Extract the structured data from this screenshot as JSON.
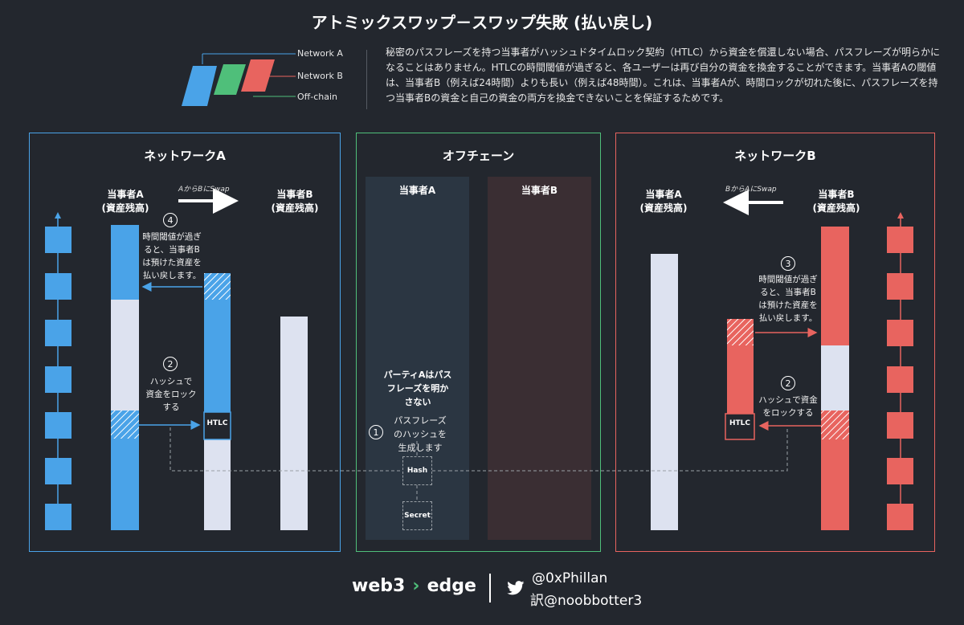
{
  "title": "アトミックスワップ－スワップ失敗 (払い戻し)",
  "legend": {
    "network_a": "Network A",
    "network_b": "Network B",
    "off_chain": "Off-chain"
  },
  "description": "秘密のパスフレーズを持つ当事者がハッシュドタイムロック契約（HTLC）から資金を償還しない場合、パスフレーズが明らかになることはありません。HTLCの時間閾値が過ぎると、各ユーザーは再び自分の資金を換金することができます。当事者Aの閾値は、当事者B（例えば24時間）よりも長い（例えば48時間）。これは、当事者Aが、時間ロックが切れた後に、パスフレーズを持つ当事者Bの資金と自己の資金の両方を換金できないことを保証するためです。",
  "colors": {
    "blue": "#4aa3e8",
    "green": "#4fbf7a",
    "red": "#e8645f",
    "pale": "#dde2f0"
  },
  "network_a": {
    "title": "ネットワークA",
    "party_a_line1": "当事者A",
    "party_a_line2": "(資産残高)",
    "party_b_line1": "当事者B",
    "party_b_line2": "(資産残高)",
    "swap_label": "AからBにSwap",
    "step4_num": "4",
    "step4_l1": "時間閾値が過ぎ",
    "step4_l2": "ると、当事者B",
    "step4_l3": "は預けた資産を",
    "step4_l4": "払い戻します。",
    "step2_num": "2",
    "step2_l1": "ハッシュで",
    "step2_l2": "資金をロック",
    "step2_l3": "する",
    "htlc": "HTLC"
  },
  "off_chain": {
    "title": "オフチェーン",
    "party_a": "当事者A",
    "party_b": "当事者B",
    "note_l1": "パーティAはパス",
    "note_l2": "フレーズを明か",
    "note_l3": "さない",
    "step1_num": "1",
    "step1_l1": "パスフレーズ",
    "step1_l2": "のハッシュを",
    "step1_l3": "生成します",
    "hash": "Hash",
    "secret": "Secret"
  },
  "network_b": {
    "title": "ネットワークB",
    "party_a_line1": "当事者A",
    "party_a_line2": "(資産残高)",
    "party_b_line1": "当事者B",
    "party_b_line2": "(資産残高)",
    "swap_label": "BからAにSwap",
    "step3_num": "3",
    "step3_l1": "時間閾値が過ぎ",
    "step3_l2": "ると、当事者B",
    "step3_l3": "は預けた資産を",
    "step3_l4": "払い戻します。",
    "step2_num": "2",
    "step2_l1": "ハッシュで資金",
    "step2_l2": "をロックする",
    "htlc": "HTLC"
  },
  "footer": {
    "logo_left": "web3",
    "logo_right": "edge",
    "handle": "@0xPhillan",
    "translator": "訳@noobbotter3"
  }
}
